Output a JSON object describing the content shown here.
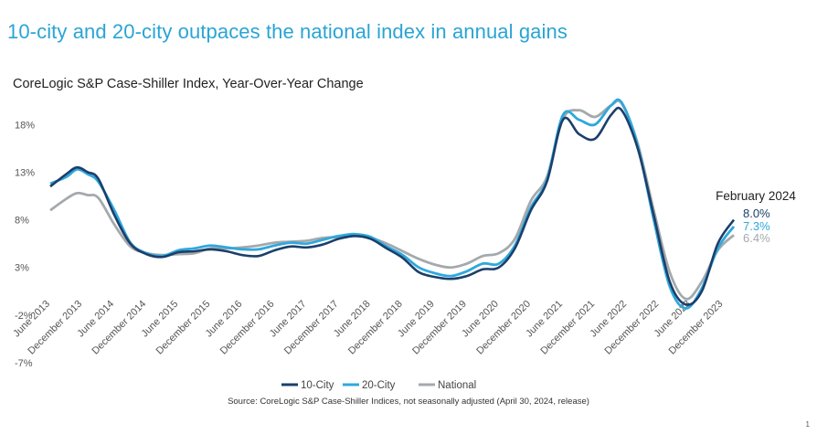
{
  "page": {
    "headline": "10-city and 20-city outpaces the national index in annual gains",
    "page_number": "1"
  },
  "chart_data": {
    "type": "line",
    "title": "CoreLogic S&P Case-Shiller Index, Year-Over-Year Change",
    "source": "Source: CoreLogic S&P Case-Shiller Indices, not seasonally adjusted (April 30, 2024, release)",
    "yticks": [
      "18%",
      "13%",
      "8%",
      "3%",
      "-2%",
      "-7%"
    ],
    "ylim": [
      -7,
      21
    ],
    "x_start": "2013-06",
    "x_end": "2024-02",
    "xticks": [
      "June 2013",
      "December 2013",
      "June 2014",
      "December 2014",
      "June 2015",
      "December 2015",
      "June 2016",
      "December 2016",
      "June 2017",
      "December 2017",
      "June 2018",
      "December 2018",
      "June 2019",
      "December 2019",
      "June 2020",
      "December 2020",
      "June 2021",
      "December 2021",
      "June 2022",
      "December 2022",
      "June 2023",
      "December 2023"
    ],
    "annotation": {
      "title": "February 2024",
      "values": [
        "8.0%",
        "7.3%",
        "6.4%"
      ]
    },
    "colors": {
      "city10": "#1b3f6b",
      "city20": "#2fa8dc",
      "national": "#a4a9ad"
    },
    "series": [
      {
        "name": "10-City",
        "points": [
          [
            "2013-06",
            11.5
          ],
          [
            "2013-09",
            12.8
          ],
          [
            "2013-11",
            13.5
          ],
          [
            "2014-01",
            13.0
          ],
          [
            "2014-03",
            12.3
          ],
          [
            "2014-06",
            8.5
          ],
          [
            "2014-09",
            5.5
          ],
          [
            "2014-12",
            4.4
          ],
          [
            "2015-03",
            4.1
          ],
          [
            "2015-06",
            4.6
          ],
          [
            "2015-09",
            4.7
          ],
          [
            "2015-12",
            4.9
          ],
          [
            "2016-03",
            4.7
          ],
          [
            "2016-06",
            4.3
          ],
          [
            "2016-09",
            4.2
          ],
          [
            "2016-12",
            4.8
          ],
          [
            "2017-03",
            5.2
          ],
          [
            "2017-06",
            5.1
          ],
          [
            "2017-09",
            5.4
          ],
          [
            "2017-12",
            6.0
          ],
          [
            "2018-03",
            6.3
          ],
          [
            "2018-06",
            6.0
          ],
          [
            "2018-09",
            5.0
          ],
          [
            "2018-12",
            4.0
          ],
          [
            "2019-03",
            2.5
          ],
          [
            "2019-06",
            2.0
          ],
          [
            "2019-09",
            1.8
          ],
          [
            "2019-12",
            2.1
          ],
          [
            "2020-03",
            2.8
          ],
          [
            "2020-06",
            3.0
          ],
          [
            "2020-09",
            5.0
          ],
          [
            "2020-12",
            9.0
          ],
          [
            "2021-03",
            12.0
          ],
          [
            "2021-06",
            18.5
          ],
          [
            "2021-09",
            17.0
          ],
          [
            "2021-12",
            16.5
          ],
          [
            "2022-03",
            19.0
          ],
          [
            "2022-05",
            19.5
          ],
          [
            "2022-08",
            15.5
          ],
          [
            "2022-11",
            8.5
          ],
          [
            "2023-02",
            1.5
          ],
          [
            "2023-05",
            -0.9
          ],
          [
            "2023-08",
            0.5
          ],
          [
            "2023-11",
            5.5
          ],
          [
            "2024-02",
            8.0
          ]
        ]
      },
      {
        "name": "20-City",
        "points": [
          [
            "2013-06",
            11.8
          ],
          [
            "2013-09",
            12.5
          ],
          [
            "2013-11",
            13.3
          ],
          [
            "2014-01",
            12.8
          ],
          [
            "2014-03",
            12.0
          ],
          [
            "2014-06",
            9.0
          ],
          [
            "2014-09",
            5.6
          ],
          [
            "2014-12",
            4.5
          ],
          [
            "2015-03",
            4.2
          ],
          [
            "2015-06",
            4.8
          ],
          [
            "2015-09",
            5.0
          ],
          [
            "2015-12",
            5.3
          ],
          [
            "2016-03",
            5.1
          ],
          [
            "2016-06",
            4.9
          ],
          [
            "2016-09",
            4.9
          ],
          [
            "2016-12",
            5.3
          ],
          [
            "2017-03",
            5.6
          ],
          [
            "2017-06",
            5.5
          ],
          [
            "2017-09",
            5.9
          ],
          [
            "2017-12",
            6.3
          ],
          [
            "2018-03",
            6.5
          ],
          [
            "2018-06",
            6.2
          ],
          [
            "2018-09",
            5.2
          ],
          [
            "2018-12",
            4.3
          ],
          [
            "2019-03",
            3.0
          ],
          [
            "2019-06",
            2.4
          ],
          [
            "2019-09",
            2.1
          ],
          [
            "2019-12",
            2.6
          ],
          [
            "2020-03",
            3.4
          ],
          [
            "2020-06",
            3.4
          ],
          [
            "2020-09",
            5.3
          ],
          [
            "2020-12",
            9.3
          ],
          [
            "2021-03",
            12.2
          ],
          [
            "2021-06",
            19.0
          ],
          [
            "2021-09",
            18.5
          ],
          [
            "2021-12",
            18.0
          ],
          [
            "2022-03",
            20.0
          ],
          [
            "2022-05",
            20.3
          ],
          [
            "2022-08",
            15.8
          ],
          [
            "2022-11",
            8.0
          ],
          [
            "2023-02",
            1.0
          ],
          [
            "2023-05",
            -1.3
          ],
          [
            "2023-08",
            0.8
          ],
          [
            "2023-11",
            5.0
          ],
          [
            "2024-02",
            7.3
          ]
        ]
      },
      {
        "name": "National",
        "points": [
          [
            "2013-06",
            9.0
          ],
          [
            "2013-09",
            10.2
          ],
          [
            "2013-11",
            10.8
          ],
          [
            "2014-01",
            10.6
          ],
          [
            "2014-03",
            10.3
          ],
          [
            "2014-06",
            7.5
          ],
          [
            "2014-09",
            5.2
          ],
          [
            "2014-12",
            4.5
          ],
          [
            "2015-03",
            4.3
          ],
          [
            "2015-06",
            4.4
          ],
          [
            "2015-09",
            4.5
          ],
          [
            "2015-12",
            5.0
          ],
          [
            "2016-03",
            5.0
          ],
          [
            "2016-06",
            5.1
          ],
          [
            "2016-09",
            5.3
          ],
          [
            "2016-12",
            5.6
          ],
          [
            "2017-03",
            5.7
          ],
          [
            "2017-06",
            5.8
          ],
          [
            "2017-09",
            6.1
          ],
          [
            "2017-12",
            6.2
          ],
          [
            "2018-03",
            6.4
          ],
          [
            "2018-06",
            6.1
          ],
          [
            "2018-09",
            5.5
          ],
          [
            "2018-12",
            4.7
          ],
          [
            "2019-03",
            3.9
          ],
          [
            "2019-06",
            3.3
          ],
          [
            "2019-09",
            3.0
          ],
          [
            "2019-12",
            3.4
          ],
          [
            "2020-03",
            4.2
          ],
          [
            "2020-06",
            4.5
          ],
          [
            "2020-09",
            6.0
          ],
          [
            "2020-12",
            10.0
          ],
          [
            "2021-03",
            12.5
          ],
          [
            "2021-06",
            18.6
          ],
          [
            "2021-09",
            19.5
          ],
          [
            "2021-12",
            18.8
          ],
          [
            "2022-03",
            20.0
          ],
          [
            "2022-05",
            20.2
          ],
          [
            "2022-08",
            16.0
          ],
          [
            "2022-11",
            9.0
          ],
          [
            "2023-02",
            2.5
          ],
          [
            "2023-05",
            -0.3
          ],
          [
            "2023-08",
            1.5
          ],
          [
            "2023-11",
            4.8
          ],
          [
            "2024-02",
            6.4
          ]
        ]
      }
    ]
  }
}
